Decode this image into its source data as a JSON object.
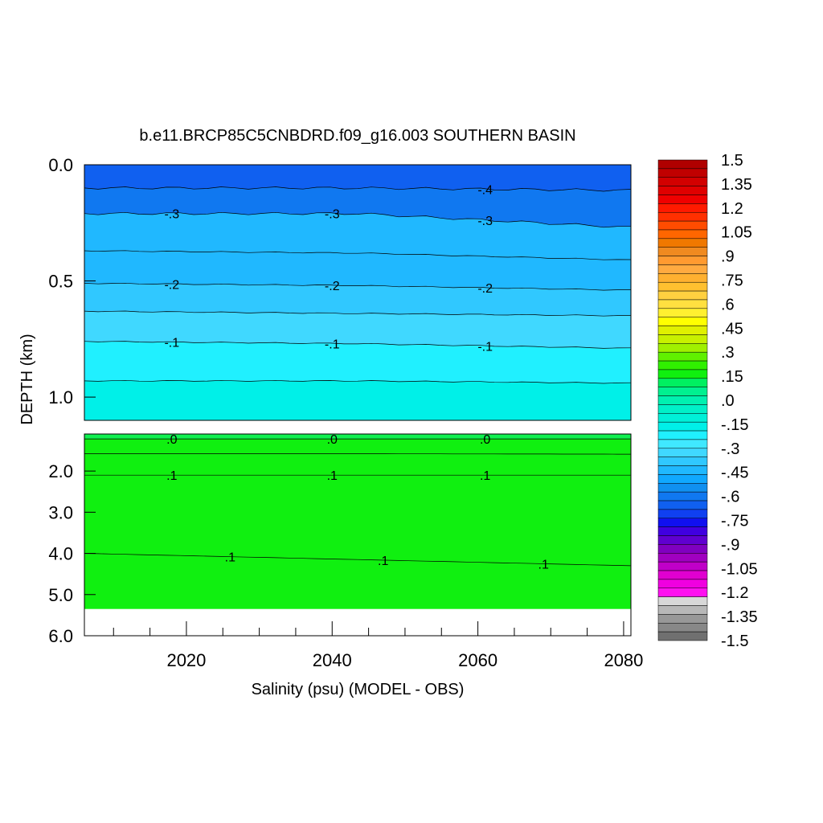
{
  "chart_data": {
    "type": "contour",
    "title": "b.e11.BRCP85C5CNBDRD.f09_g16.003 SOUTHERN BASIN",
    "xlabel": "Salinity (psu) (MODEL - OBS)",
    "ylabel": "DEPTH (km)",
    "xlim": [
      2006,
      2081
    ],
    "x_ticks": [
      "2020",
      "2040",
      "2060",
      "2080"
    ],
    "upper_panel": {
      "ylim": [
        0.0,
        1.1
      ],
      "y_ticks": [
        "0.0",
        "0.5",
        "1.0"
      ]
    },
    "lower_panel": {
      "ylim": [
        1.1,
        6.0
      ],
      "y_ticks": [
        "2.0",
        "3.0",
        "4.0",
        "5.0",
        "6.0"
      ]
    },
    "bottom_depth_km": 5.35,
    "contours": [
      {
        "value": -0.4,
        "label": "-.4",
        "depths_km": [
          0.1,
          0.1,
          0.11
        ]
      },
      {
        "value": -0.3,
        "label": "-.3",
        "depths_km": [
          0.21,
          0.21,
          0.27
        ]
      },
      {
        "value": -0.25,
        "label": "",
        "depths_km": [
          0.37,
          0.38,
          0.41
        ]
      },
      {
        "value": -0.2,
        "label": "-.2",
        "depths_km": [
          0.51,
          0.52,
          0.54
        ]
      },
      {
        "value": -0.15,
        "label": "",
        "depths_km": [
          0.63,
          0.64,
          0.65
        ]
      },
      {
        "value": -0.1,
        "label": "-.1",
        "depths_km": [
          0.76,
          0.77,
          0.79
        ]
      },
      {
        "value": -0.05,
        "label": "",
        "depths_km": [
          0.93,
          0.93,
          0.94
        ]
      },
      {
        "value": 0.0,
        "label": ".0",
        "depths_km": [
          1.22,
          1.22,
          1.22
        ]
      },
      {
        "value": 0.05,
        "label": "",
        "depths_km": [
          1.58,
          1.58,
          1.59
        ]
      },
      {
        "value": 0.1,
        "label": ".1",
        "depths_km": [
          2.1,
          2.1,
          2.1
        ]
      },
      {
        "value": 0.1,
        "label": ".1",
        "depths_km": [
          4.0,
          4.15,
          4.3
        ]
      }
    ],
    "colorbar": {
      "labels": [
        "1.5",
        "1.35",
        "1.2",
        "1.05",
        ".9",
        ".75",
        ".6",
        ".45",
        ".3",
        ".15",
        ".0",
        "-.15",
        "-.3",
        "-.45",
        "-.6",
        "-.75",
        "-.9",
        "-1.05",
        "-1.2",
        "-1.35",
        "-1.5"
      ],
      "colors": [
        "#b00000",
        "#c00000",
        "#d20000",
        "#e00000",
        "#f00000",
        "#ff1a00",
        "#ff3000",
        "#ff4c00",
        "#ff6600",
        "#f07800",
        "#f08a20",
        "#ff9a30",
        "#ffaa40",
        "#ffb030",
        "#ffc030",
        "#ffd040",
        "#ffe040",
        "#fff030",
        "#ffff00",
        "#e0f000",
        "#c8f000",
        "#a0f000",
        "#60f000",
        "#30f000",
        "#10f010",
        "#00f060",
        "#00f090",
        "#00f0b0",
        "#00f0c8",
        "#00f0d8",
        "#00f0e8",
        "#20f0ff",
        "#40e8ff",
        "#40d8ff",
        "#30c8ff",
        "#20b8ff",
        "#10a8ff",
        "#1090f0",
        "#1078f0",
        "#1060f0",
        "#1040f0",
        "#1010f0",
        "#4000e0",
        "#6000d0",
        "#8000c0",
        "#a000c0",
        "#c000c8",
        "#e000d0",
        "#f000e0",
        "#ff10f0",
        "#d8d8d8",
        "#b8b8b8",
        "#989898",
        "#888888",
        "#707070"
      ]
    }
  }
}
